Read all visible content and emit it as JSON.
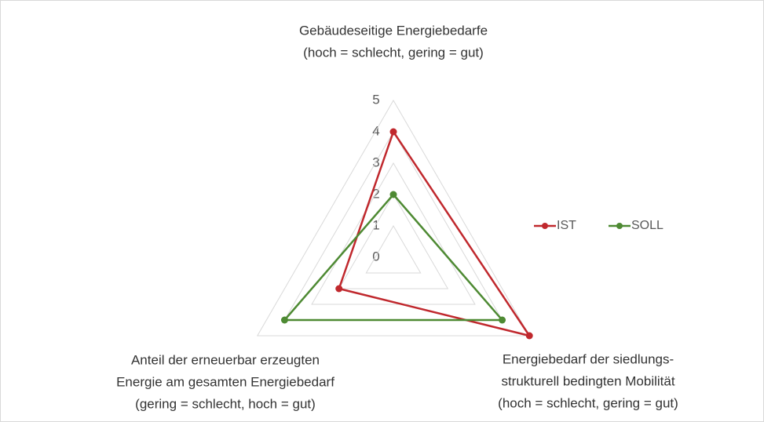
{
  "chart_data": {
    "type": "radar",
    "categories": [
      [
        "Gebäudeseitige Energiebedarfe",
        "(hoch = schlecht, gering = gut)"
      ],
      [
        "Energiebedarf der siedlungs-",
        "strukturell bedingten Mobilität",
        "(hoch = schlecht, gering = gut)"
      ],
      [
        "Anteil der erneuerbar erzeugten",
        "Energie am gesamten Energiebedarf",
        "(gering = schlecht, hoch = gut)"
      ]
    ],
    "series": [
      {
        "name": "IST",
        "color": "#c0282d",
        "values": [
          4,
          5,
          2
        ]
      },
      {
        "name": "SOLL",
        "color": "#4e8a33",
        "values": [
          2,
          4,
          4
        ]
      }
    ],
    "ylim": [
      0,
      5
    ],
    "yticks": [
      0,
      1,
      2,
      3,
      4,
      5
    ],
    "grid": true,
    "legend": "right"
  }
}
